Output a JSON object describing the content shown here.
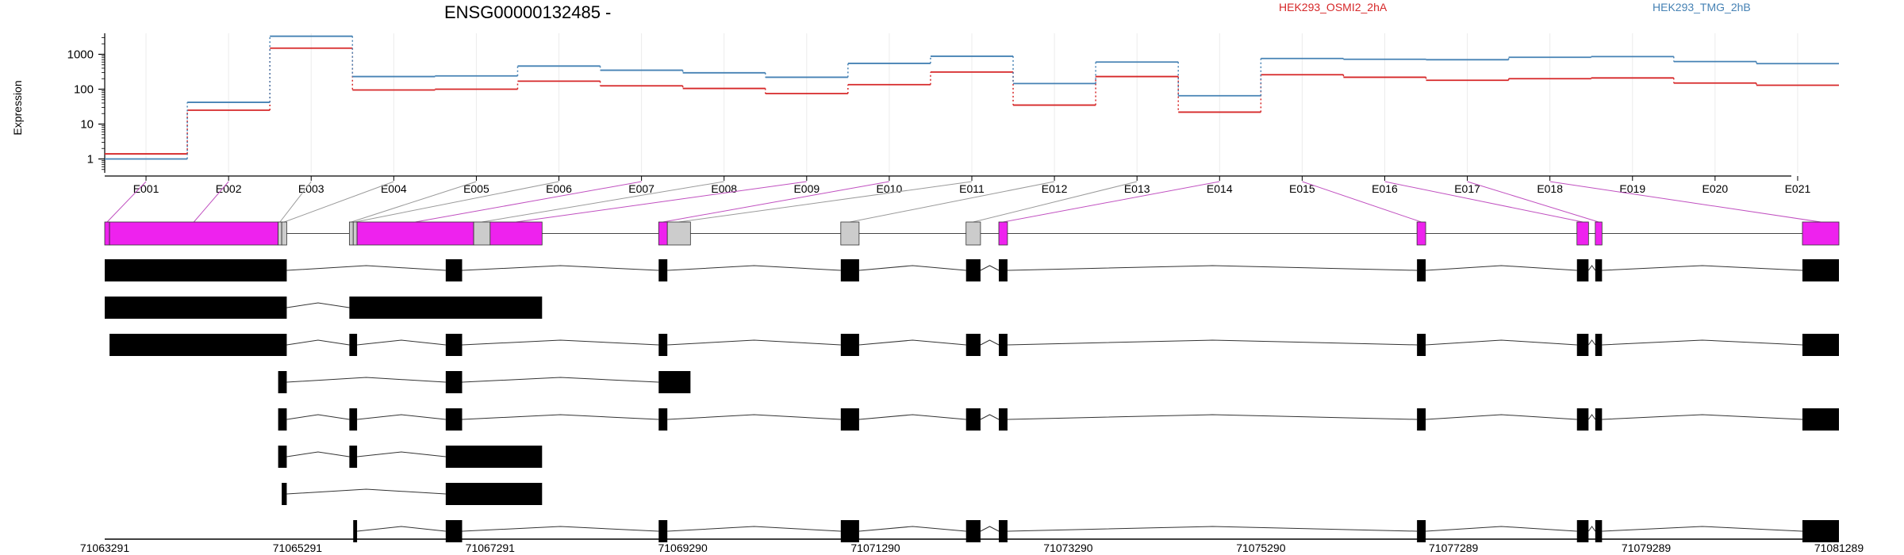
{
  "chart_data": {
    "type": "line",
    "title": "ENSG00000132485 -",
    "ylabel": "Expression",
    "yscale": "log",
    "ylim": [
      0.4,
      4000
    ],
    "y_ticks": [
      1,
      10,
      100,
      1000
    ],
    "y_tick_labels": [
      "1",
      "10",
      "100",
      "1000"
    ],
    "categories": [
      "E001",
      "E002",
      "E003",
      "E004",
      "E005",
      "E006",
      "E007",
      "E008",
      "E009",
      "E010",
      "E011",
      "E012",
      "E013",
      "E014",
      "E015",
      "E016",
      "E017",
      "E018",
      "E019",
      "E020",
      "E021"
    ],
    "series": [
      {
        "name": "HEK293_OSMI2_2hA",
        "color": "#d62728",
        "values": [
          1.4,
          25,
          1500,
          95,
          100,
          170,
          125,
          105,
          75,
          135,
          310,
          35,
          230,
          22,
          260,
          220,
          180,
          200,
          210,
          150,
          130
        ]
      },
      {
        "name": "HEK293_TMG_2hB",
        "color": "#4682b4",
        "values": [
          1.0,
          42,
          3300,
          230,
          240,
          460,
          350,
          295,
          220,
          550,
          880,
          145,
          600,
          65,
          760,
          720,
          700,
          820,
          860,
          620,
          540
        ]
      }
    ],
    "genome_axis": {
      "range": [
        71063291,
        71081289
      ],
      "ticks": [
        71063291,
        71065291,
        71067291,
        71069290,
        71071290,
        71073290,
        71075290,
        71077289,
        71079289,
        71081289
      ]
    },
    "exon_bins": [
      {
        "start": 71063291,
        "end": 71063341,
        "tested": true
      },
      {
        "start": 71063341,
        "end": 71065091,
        "tested": true
      },
      {
        "start": 71065091,
        "end": 71065128,
        "tested": false
      },
      {
        "start": 71065128,
        "end": 71065180,
        "tested": false
      },
      {
        "start": 71065830,
        "end": 71065870,
        "tested": false
      },
      {
        "start": 71065870,
        "end": 71065910,
        "tested": false
      },
      {
        "start": 71065910,
        "end": 71067120,
        "tested": true
      },
      {
        "start": 71067120,
        "end": 71067291,
        "tested": false
      },
      {
        "start": 71067291,
        "end": 71067830,
        "tested": true
      },
      {
        "start": 71069040,
        "end": 71069130,
        "tested": true
      },
      {
        "start": 71069130,
        "end": 71069370,
        "tested": false
      },
      {
        "start": 71070930,
        "end": 71071120,
        "tested": false
      },
      {
        "start": 71072230,
        "end": 71072380,
        "tested": false
      },
      {
        "start": 71072570,
        "end": 71072660,
        "tested": true
      },
      {
        "start": 71076910,
        "end": 71077000,
        "tested": true
      },
      {
        "start": 71078570,
        "end": 71078690,
        "tested": true
      },
      {
        "start": 71078760,
        "end": 71078830,
        "tested": true
      },
      {
        "start": 71080910,
        "end": 71081289,
        "tested": true
      }
    ],
    "transcripts": [
      [
        [
          71063291,
          71065180
        ],
        [
          71066830,
          71067000
        ],
        [
          71069040,
          71069130
        ],
        [
          71070930,
          71071120
        ],
        [
          71072230,
          71072380
        ],
        [
          71072570,
          71072660
        ],
        [
          71076910,
          71077000
        ],
        [
          71078570,
          71078690
        ],
        [
          71078760,
          71078830
        ],
        [
          71080910,
          71081289
        ]
      ],
      [
        [
          71063291,
          71065180
        ],
        [
          71065830,
          71067830
        ]
      ],
      [
        [
          71063341,
          71065180
        ],
        [
          71065830,
          71065910
        ],
        [
          71066830,
          71067000
        ],
        [
          71069040,
          71069130
        ],
        [
          71070930,
          71071120
        ],
        [
          71072230,
          71072380
        ],
        [
          71072570,
          71072660
        ],
        [
          71076910,
          71077000
        ],
        [
          71078570,
          71078690
        ],
        [
          71078760,
          71078830
        ],
        [
          71080910,
          71081289
        ]
      ],
      [
        [
          71065091,
          71065180
        ],
        [
          71066830,
          71067000
        ],
        [
          71069040,
          71069370
        ]
      ],
      [
        [
          71065091,
          71065180
        ],
        [
          71065830,
          71065910
        ],
        [
          71066830,
          71067000
        ],
        [
          71069040,
          71069130
        ],
        [
          71070930,
          71071120
        ],
        [
          71072230,
          71072380
        ],
        [
          71072570,
          71072660
        ],
        [
          71076910,
          71077000
        ],
        [
          71078570,
          71078690
        ],
        [
          71078760,
          71078830
        ],
        [
          71080910,
          71081289
        ]
      ],
      [
        [
          71065091,
          71065180
        ],
        [
          71065830,
          71065910
        ],
        [
          71066830,
          71067830
        ]
      ],
      [
        [
          71065128,
          71065180
        ],
        [
          71066830,
          71067830
        ]
      ],
      [
        [
          71065870,
          71065910
        ],
        [
          71066830,
          71067000
        ],
        [
          71069040,
          71069130
        ],
        [
          71070930,
          71071120
        ],
        [
          71072230,
          71072380
        ],
        [
          71072570,
          71072660
        ],
        [
          71076910,
          71077000
        ],
        [
          71078570,
          71078690
        ],
        [
          71078760,
          71078830
        ],
        [
          71080910,
          71081289
        ]
      ]
    ],
    "legend_placement": "top-right",
    "grid": true
  }
}
